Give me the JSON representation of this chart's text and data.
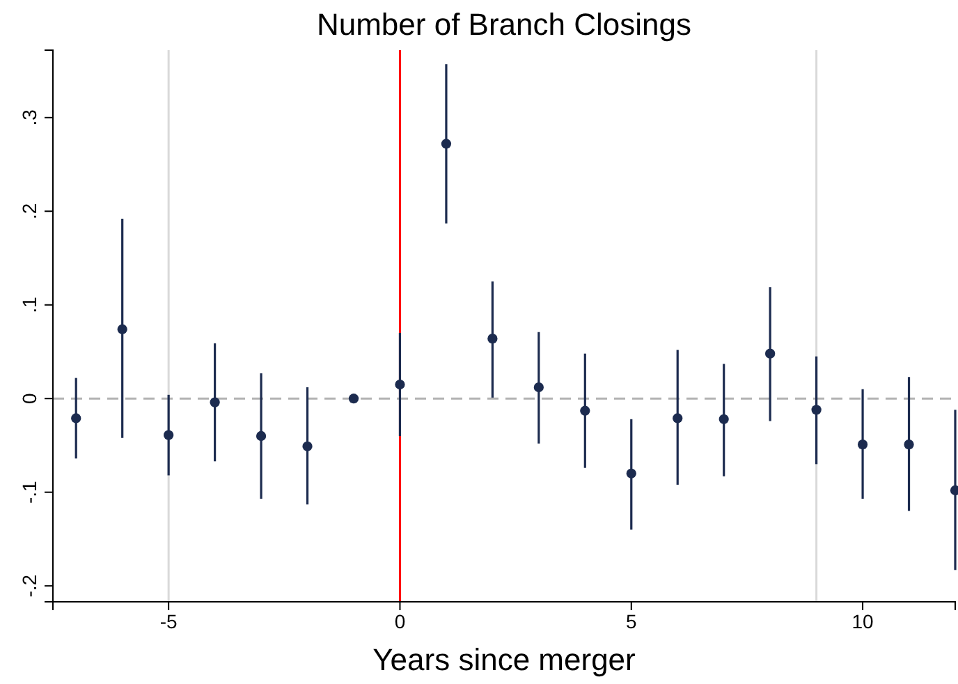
{
  "chart_data": {
    "type": "scatter",
    "title": "Number of Branch Closings",
    "xlabel": "Years since merger",
    "x": [
      -7,
      -6,
      -5,
      -4,
      -3,
      -2,
      -1,
      0,
      1,
      2,
      3,
      4,
      5,
      6,
      7,
      8,
      9,
      10,
      11,
      12
    ],
    "series": [
      {
        "color": "#1c2b4f",
        "values": [
          -0.021,
          0.074,
          -0.039,
          -0.004,
          -0.04,
          -0.051,
          0,
          0.015,
          0.272,
          0.064,
          0.012,
          -0.013,
          -0.08,
          -0.021,
          -0.022,
          0.048,
          -0.012,
          -0.049,
          -0.049,
          -0.098
        ],
        "errors": [
          [
            -0.064,
            0.022
          ],
          [
            -0.042,
            0.192
          ],
          [
            -0.082,
            0.004
          ],
          [
            -0.067,
            0.059
          ],
          [
            -0.107,
            0.027
          ],
          [
            -0.113,
            0.012
          ],
          null,
          [
            -0.04,
            0.07
          ],
          [
            0.187,
            0.357
          ],
          [
            0.001,
            0.125
          ],
          [
            -0.048,
            0.071
          ],
          [
            -0.074,
            0.048
          ],
          [
            -0.14,
            -0.022
          ],
          [
            -0.092,
            0.052
          ],
          [
            -0.083,
            0.037
          ],
          [
            -0.024,
            0.119
          ],
          [
            -0.07,
            0.045
          ],
          [
            -0.107,
            0.01
          ],
          [
            -0.12,
            0.023
          ],
          [
            -0.183,
            -0.012
          ]
        ]
      }
    ],
    "xlim": [
      -7.5,
      12
    ],
    "xticks": [
      -5,
      0,
      5,
      10
    ],
    "ylim": [
      -0.217,
      0.372
    ],
    "yticks": [
      {
        "value": -0.2,
        "label": "-.2"
      },
      {
        "value": -0.1,
        "label": "-.1"
      },
      {
        "value": 0,
        "label": "0"
      },
      {
        "value": 0.1,
        "label": ".1"
      },
      {
        "value": 0.2,
        "label": ".2"
      },
      {
        "value": 0.3,
        "label": ".3"
      }
    ],
    "ref_lines": [
      {
        "axis": "x",
        "value": -5,
        "color": "#d9d9d9",
        "line_style": "solid"
      },
      {
        "axis": "x",
        "value": 9,
        "color": "#d9d9d9",
        "line_style": "solid"
      },
      {
        "axis": "x",
        "value": 0,
        "color": "#ff0000",
        "line_style": "solid"
      },
      {
        "axis": "y",
        "value": 0,
        "color": "#b3b3b3",
        "line_style": "dashed"
      }
    ],
    "marker": "circle",
    "grid": false
  }
}
